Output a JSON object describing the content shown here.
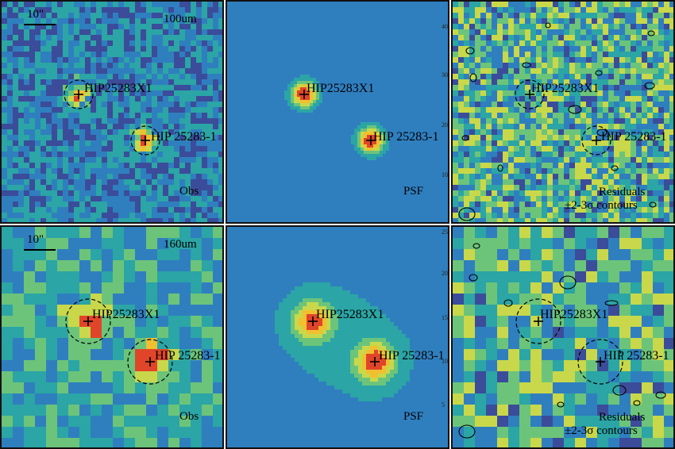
{
  "figure": {
    "rows": [
      {
        "band": "100um",
        "scalebar": "10\"",
        "panels": [
          {
            "kind": "obs",
            "label": "Obs"
          },
          {
            "kind": "psf",
            "label": "PSF",
            "axis_ticks": [
              "40",
              "30",
              "20",
              "10"
            ]
          },
          {
            "kind": "residual",
            "label_line1": "Residuals",
            "label_line2": "±2-3σ contours"
          }
        ]
      },
      {
        "band": "160um",
        "scalebar": "10\"",
        "panels": [
          {
            "kind": "obs",
            "label": "Obs"
          },
          {
            "kind": "psf",
            "label": "PSF",
            "axis_ticks": [
              "25",
              "20",
              "15",
              "10",
              "5"
            ]
          },
          {
            "kind": "residual",
            "label_line1": "Residuals",
            "label_line2": "±2-3σ contours"
          }
        ]
      }
    ],
    "sources": {
      "source1": "HIP25283X1",
      "source2": "HIP 25283-1"
    },
    "colormap": [
      "#3a1a6e",
      "#3b4c9a",
      "#2f7fbf",
      "#2ba5a5",
      "#6cc47a",
      "#c8d84a",
      "#f0c030",
      "#e0452a"
    ]
  }
}
